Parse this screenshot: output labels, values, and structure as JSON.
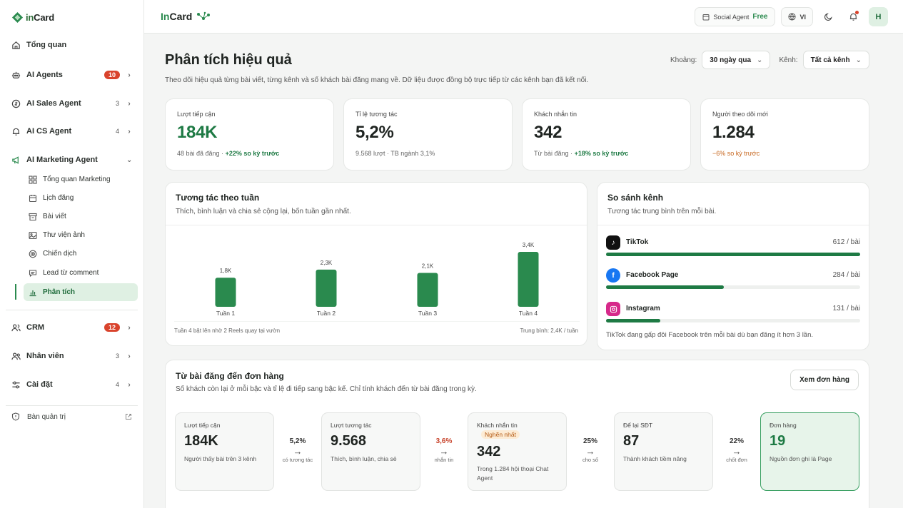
{
  "brand": {
    "logo_text_a": "in",
    "logo_text_b": "Card",
    "top_logo_a": "In",
    "top_logo_b": "Card"
  },
  "sidebar": {
    "overview": "Tổng quan",
    "items": [
      {
        "label": "AI Agents",
        "badge": "10"
      },
      {
        "label": "AI Sales Agent",
        "count": "3"
      },
      {
        "label": "AI CS Agent",
        "count": "4"
      },
      {
        "label": "AI Marketing Agent"
      }
    ],
    "sub_items": [
      "Tổng quan Marketing",
      "Lịch đăng",
      "Bài viết",
      "Thư viện ảnh",
      "Chiến dịch",
      "Lead từ comment",
      "Phân tích"
    ],
    "lower": [
      {
        "label": "CRM",
        "badge": "12"
      },
      {
        "label": "Nhân viên",
        "count": "3"
      },
      {
        "label": "Cài đặt",
        "count": "4"
      }
    ],
    "admin": "Bàn quản trị"
  },
  "topbar": {
    "plan_label": "Social Agent",
    "plan_tier": "Free",
    "lang": "VI",
    "avatar": "H"
  },
  "header": {
    "title": "Phân tích hiệu quả",
    "desc": "Theo dõi hiệu quả từng bài viết, từng kênh và số khách bài đăng mang về. Dữ liệu được đồng bộ trực tiếp từ các kênh bạn đã kết nối.",
    "range_label": "Khoảng:",
    "range_value": "30 ngày qua",
    "channel_label": "Kênh:",
    "channel_value": "Tất cả kênh"
  },
  "kpis": [
    {
      "label": "Lượt tiếp cận",
      "value": "184K",
      "sub": "48 bài đã đăng · ",
      "delta": "+22% so kỳ trước",
      "delta_type": "pos"
    },
    {
      "label": "Tỉ lệ tương tác",
      "value": "5,2%",
      "sub": "9.568 lượt · TB ngành 3,1%",
      "delta": "",
      "delta_type": ""
    },
    {
      "label": "Khách nhắn tin",
      "value": "342",
      "sub": "Từ bài đăng · ",
      "delta": "+18% so kỳ trước",
      "delta_type": "pos"
    },
    {
      "label": "Người theo dõi mới",
      "value": "1.284",
      "sub": "",
      "delta": "−6% so kỳ trước",
      "delta_type": "neg"
    }
  ],
  "weekly": {
    "title": "Tương tác theo tuần",
    "desc": "Thích, bình luận và chia sẻ cộng lại, bốn tuần gần nhất.",
    "foot_left": "Tuần 4 bật lên nhờ 2 Reels quay tại vườn",
    "foot_right": "Trung bình: 2,4K / tuần"
  },
  "chart_data": {
    "type": "bar",
    "categories": [
      "Tuần 1",
      "Tuần 2",
      "Tuần 3",
      "Tuần 4"
    ],
    "values": [
      1.8,
      2.3,
      2.1,
      3.4
    ],
    "value_labels": [
      "1,8K",
      "2,3K",
      "2,1K",
      "3,4K"
    ],
    "ylim": [
      0,
      3.4
    ],
    "color": "#2a8a4e"
  },
  "channels": {
    "title": "So sánh kênh",
    "desc": "Tương tác trung bình trên mỗi bài.",
    "rows": [
      {
        "name": "TikTok",
        "value": "612 / bài",
        "fraction": 1.0,
        "icon": "tiktok-icon",
        "color": "#111111"
      },
      {
        "name": "Facebook Page",
        "value": "284 / bài",
        "fraction": 0.464,
        "icon": "facebook-icon",
        "color": "#1877f2"
      },
      {
        "name": "Instagram",
        "value": "131 / bài",
        "fraction": 0.214,
        "icon": "instagram-icon",
        "color": "#d6298a"
      }
    ],
    "note": "TikTok đang gấp đôi Facebook trên mỗi bài dù bạn đăng ít hơn 3 lần."
  },
  "funnel": {
    "title": "Từ bài đăng đến đơn hàng",
    "desc": "Số khách còn lại ở mỗi bậc và tỉ lệ đi tiếp sang bậc kế. Chỉ tính khách đến từ bài đăng trong kỳ.",
    "button": "Xem đơn hàng",
    "stages": [
      {
        "label": "Lượt tiếp cận",
        "value": "184K",
        "sub": "Người thấy bài trên 3 kênh"
      },
      {
        "label": "Lượt tương tác",
        "value": "9.568",
        "sub": "Thích, bình luận, chia sẻ"
      },
      {
        "label": "Khách nhắn tin",
        "tag": "Nghẽn nhất",
        "value": "342",
        "sub": "Trong 1.284 hội thoại Chat Agent"
      },
      {
        "label": "Để lại SĐT",
        "value": "87",
        "sub": "Thành khách tiềm năng"
      },
      {
        "label": "Đơn hàng",
        "value": "19",
        "sub": "Nguồn đơn ghi là Page"
      }
    ],
    "conversions": [
      {
        "pct": "5,2%",
        "cap": "có tương tác"
      },
      {
        "pct": "3,6%",
        "cap": "nhắn tin",
        "warn": true
      },
      {
        "pct": "25%",
        "cap": "cho số"
      },
      {
        "pct": "22%",
        "cap": "chốt đơn"
      }
    ]
  }
}
